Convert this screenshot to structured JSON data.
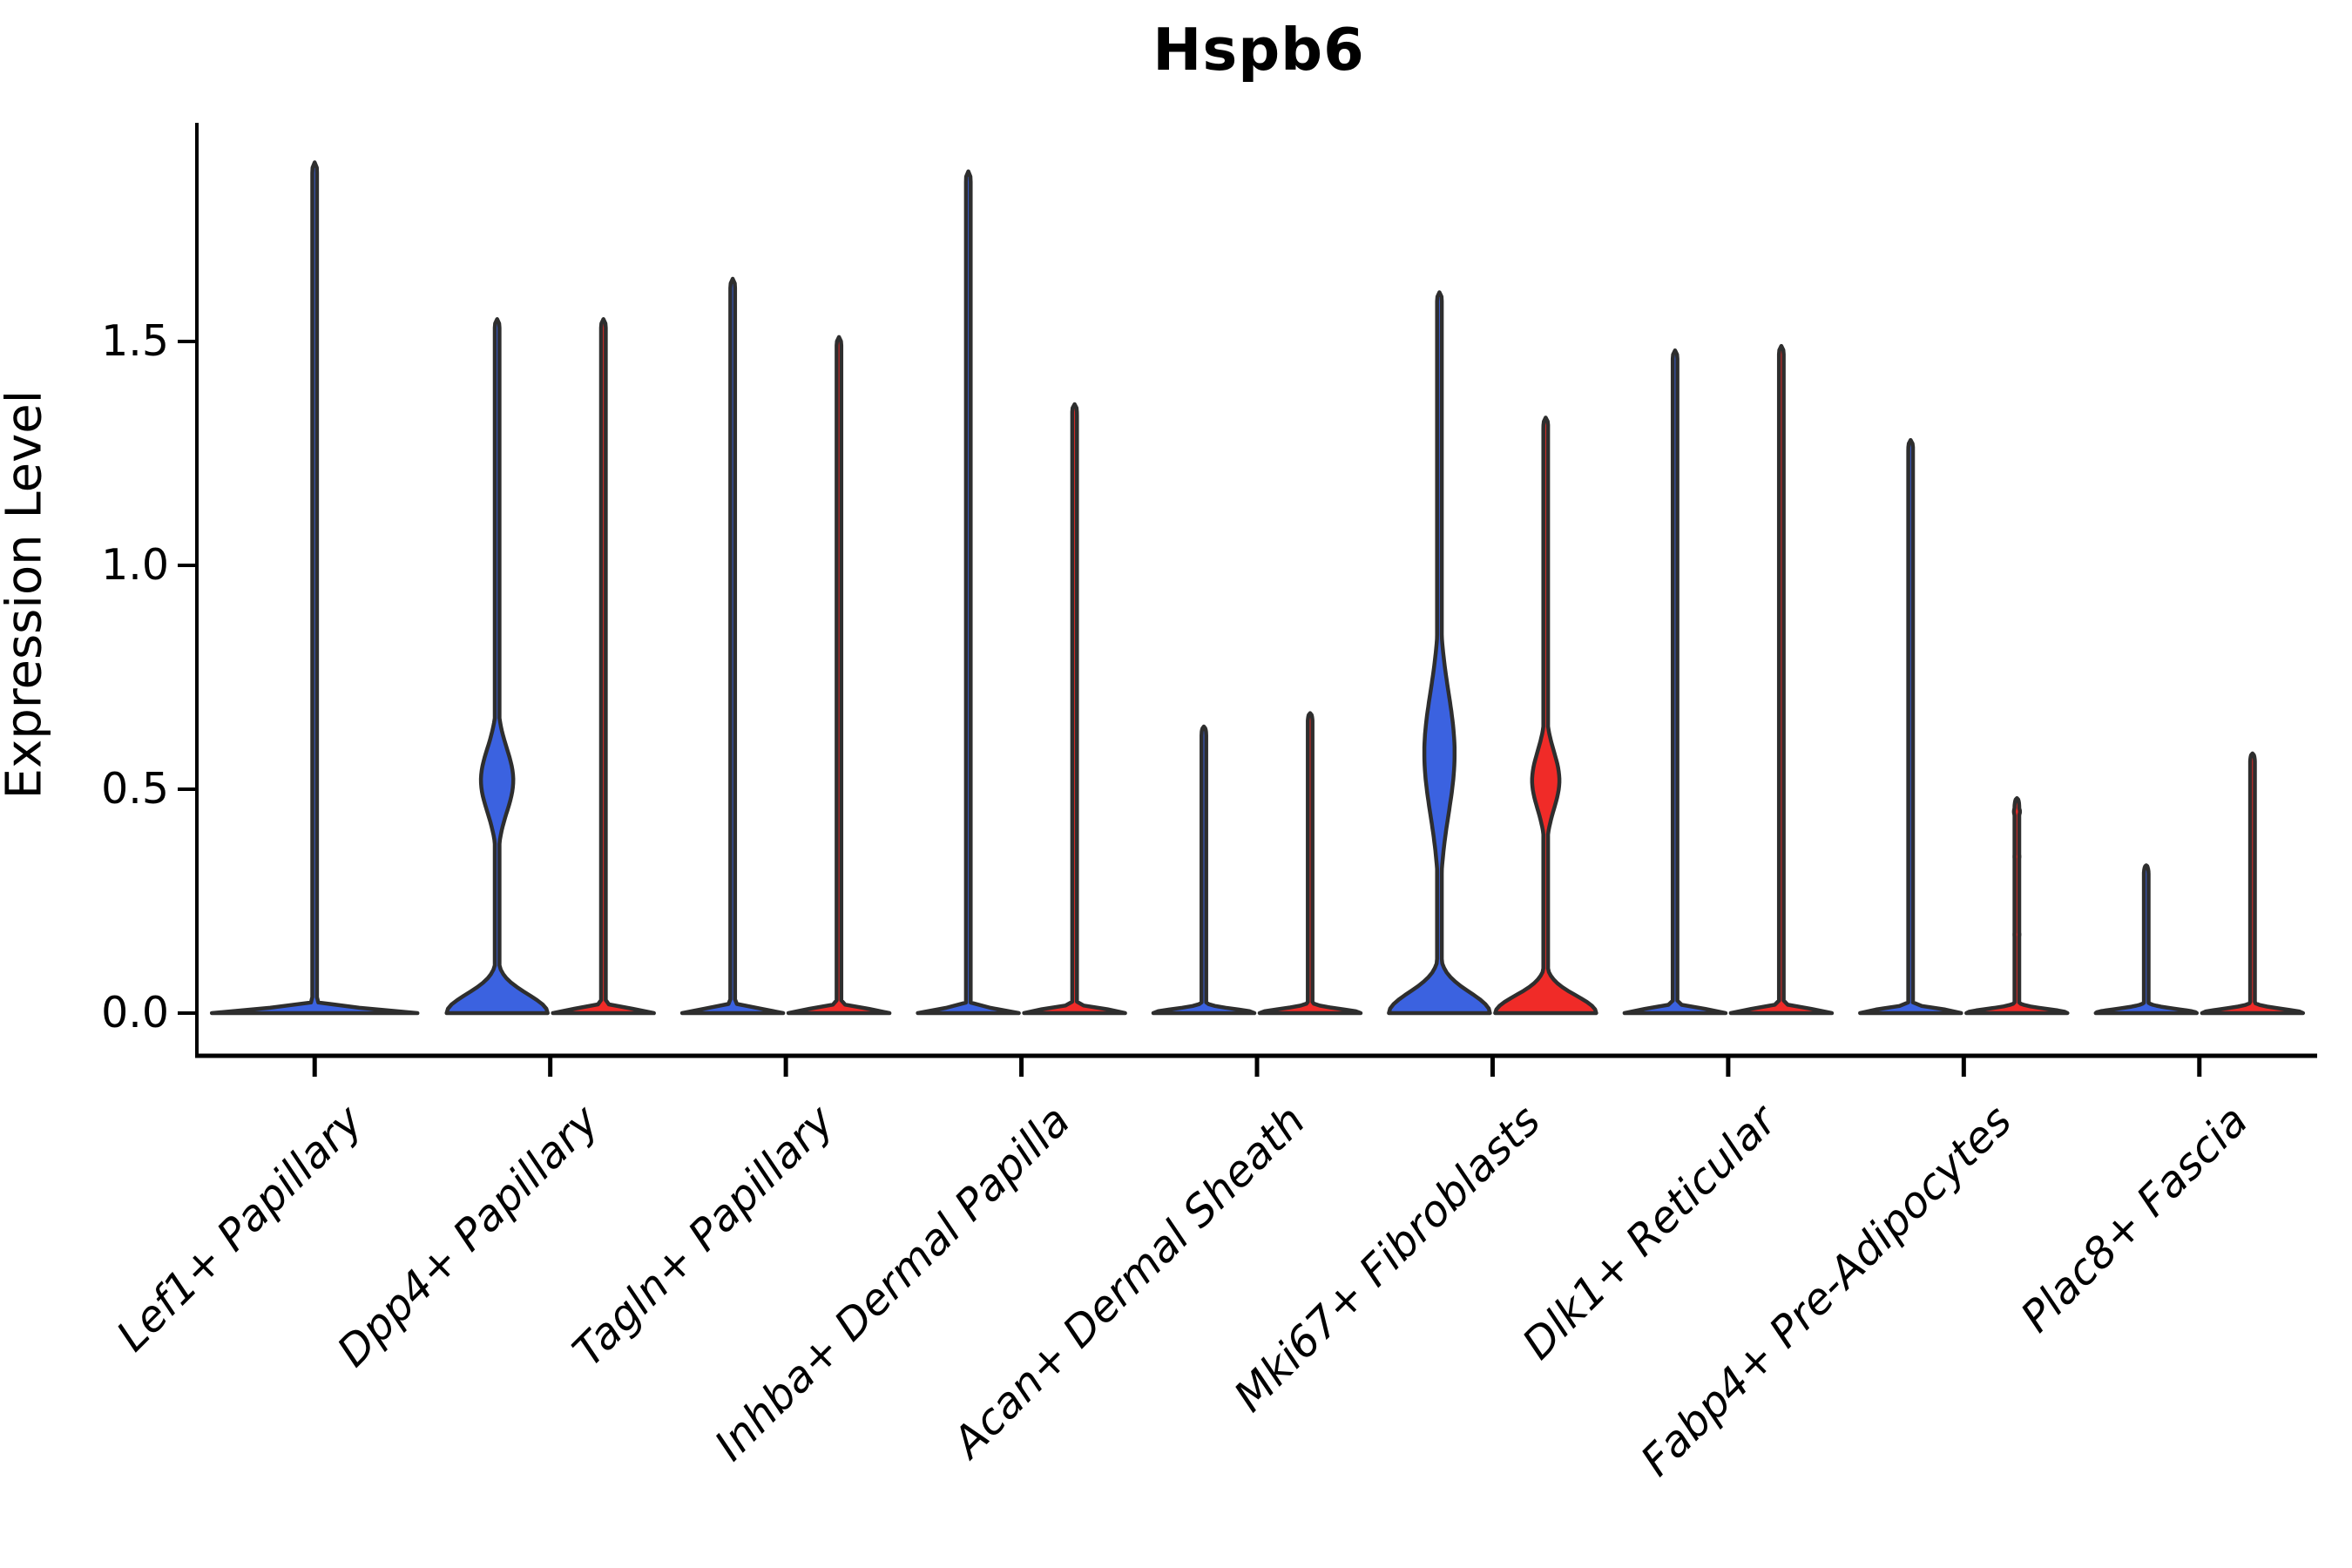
{
  "chart_data": {
    "type": "violin",
    "title": "Hspb6",
    "ylabel": "Expression Level",
    "xlabel": "",
    "ylim": [
      0.0,
      1.99
    ],
    "yticks": [
      "0.0",
      "0.5",
      "1.0",
      "1.5"
    ],
    "ytick_values": [
      0.0,
      0.5,
      1.0,
      1.5
    ],
    "grid": "off",
    "legend": "none",
    "colors": {
      "blue_fill": "#3B62E0",
      "red_fill": "#F02B28",
      "outline": "#2E2E2E",
      "axis": "#000000"
    },
    "categories": [
      "Lef1+ Papillary",
      "Dpp4+ Papillary",
      "Tagln+ Papillary",
      "Inhba+ Dermal Papilla",
      "Acan+ Dermal Sheath",
      "Mki67+ Fibroblasts",
      "Dlk1+ Reticular",
      "Fabp4+ Pre-Adipocytes",
      "Plac8+ Fascia"
    ],
    "violins": [
      {
        "category_index": 0,
        "side": "center",
        "color": "blue_fill",
        "max_expression": 1.9,
        "mass_at_zero": true,
        "base_sigma": 0.013,
        "bumps": []
      },
      {
        "category_index": 1,
        "side": "left",
        "color": "blue_fill",
        "max_expression": 1.55,
        "mass_at_zero": true,
        "base_sigma": 0.06,
        "bumps": [
          {
            "center": 0.52,
            "sigma": 0.1,
            "amp": 0.32
          }
        ]
      },
      {
        "category_index": 1,
        "side": "right",
        "color": "red_fill",
        "max_expression": 1.55,
        "mass_at_zero": true,
        "base_sigma": 0.013,
        "bumps": []
      },
      {
        "category_index": 2,
        "side": "left",
        "color": "blue_fill",
        "max_expression": 1.64,
        "mass_at_zero": true,
        "base_sigma": 0.013,
        "bumps": []
      },
      {
        "category_index": 2,
        "side": "right",
        "color": "red_fill",
        "max_expression": 1.51,
        "mass_at_zero": true,
        "base_sigma": 0.013,
        "bumps": []
      },
      {
        "category_index": 3,
        "side": "left",
        "color": "blue_fill",
        "max_expression": 1.88,
        "mass_at_zero": true,
        "base_sigma": 0.013,
        "bumps": []
      },
      {
        "category_index": 3,
        "side": "right",
        "color": "red_fill",
        "max_expression": 1.36,
        "mass_at_zero": true,
        "base_sigma": 0.013,
        "bumps": []
      },
      {
        "category_index": 4,
        "side": "left",
        "color": "blue_fill",
        "max_expression": 0.64,
        "mass_at_zero": true,
        "base_sigma": 0.013,
        "bumps": []
      },
      {
        "category_index": 4,
        "side": "right",
        "color": "red_fill",
        "max_expression": 0.67,
        "mass_at_zero": true,
        "base_sigma": 0.013,
        "bumps": []
      },
      {
        "category_index": 5,
        "side": "left",
        "color": "blue_fill",
        "max_expression": 1.61,
        "mass_at_zero": true,
        "base_sigma": 0.065,
        "bumps": [
          {
            "center": 0.58,
            "sigma": 0.19,
            "amp": 0.3
          }
        ]
      },
      {
        "category_index": 5,
        "side": "right",
        "color": "red_fill",
        "max_expression": 1.33,
        "mass_at_zero": true,
        "base_sigma": 0.055,
        "bumps": [
          {
            "center": 0.52,
            "sigma": 0.09,
            "amp": 0.27
          }
        ]
      },
      {
        "category_index": 6,
        "side": "left",
        "color": "blue_fill",
        "max_expression": 1.48,
        "mass_at_zero": true,
        "base_sigma": 0.013,
        "bumps": []
      },
      {
        "category_index": 6,
        "side": "right",
        "color": "red_fill",
        "max_expression": 1.49,
        "mass_at_zero": true,
        "base_sigma": 0.013,
        "bumps": []
      },
      {
        "category_index": 7,
        "side": "left",
        "color": "blue_fill",
        "max_expression": 1.28,
        "mass_at_zero": true,
        "base_sigma": 0.013,
        "bumps": []
      },
      {
        "category_index": 7,
        "side": "right",
        "color": "red_fill",
        "max_expression": 0.48,
        "mass_at_zero": true,
        "base_sigma": 0.013,
        "bumps": [
          {
            "center": 0.175,
            "sigma": 0.012,
            "amp": 0.05
          },
          {
            "center": 0.35,
            "sigma": 0.012,
            "amp": 0.05
          },
          {
            "center": 0.45,
            "sigma": 0.014,
            "amp": 0.06
          }
        ]
      },
      {
        "category_index": 8,
        "side": "left",
        "color": "blue_fill",
        "max_expression": 0.33,
        "mass_at_zero": true,
        "base_sigma": 0.013,
        "bumps": []
      },
      {
        "category_index": 8,
        "side": "right",
        "color": "red_fill",
        "max_expression": 0.58,
        "mass_at_zero": true,
        "base_sigma": 0.013,
        "bumps": []
      }
    ]
  }
}
